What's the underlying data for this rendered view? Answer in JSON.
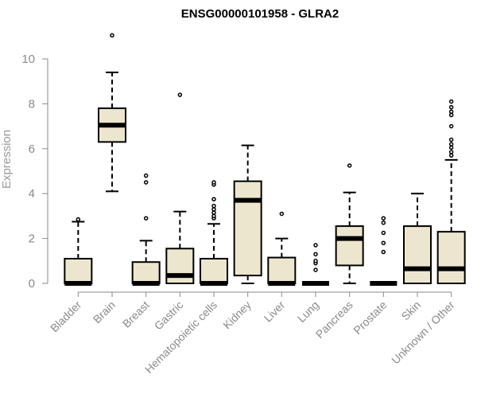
{
  "chart_data": {
    "type": "boxplot",
    "title": "ENSG00000101958 - GLRA2",
    "xlabel": "",
    "ylabel": "Expression",
    "ylim": [
      0,
      11
    ],
    "yticks": [
      0,
      2,
      4,
      6,
      8,
      10
    ],
    "grid": false,
    "legend": "none",
    "colors": {
      "box_fill": "#ede6cf",
      "box_stroke": "#000000",
      "axis": "#8a8a8a",
      "label": "#8a8a8a"
    },
    "categories": [
      "Bladder",
      "Brain",
      "Breast",
      "Gastric",
      "Hematopoietic cells",
      "Kidney",
      "Liver",
      "Lung",
      "Pancreas",
      "Prostate",
      "Skin",
      "Unknown / Other"
    ],
    "boxes": [
      {
        "category": "Bladder",
        "whisker_low": 0,
        "q1": 0,
        "median": 0,
        "q3": 1.1,
        "whisker_high": 2.75,
        "outliers": [
          2.85
        ]
      },
      {
        "category": "Brain",
        "whisker_low": 4.1,
        "q1": 6.3,
        "median": 7.05,
        "q3": 7.8,
        "whisker_high": 9.4,
        "outliers": [
          11.05
        ]
      },
      {
        "category": "Breast",
        "whisker_low": 0,
        "q1": 0,
        "median": 0,
        "q3": 0.95,
        "whisker_high": 1.9,
        "outliers": [
          2.9,
          4.5,
          4.8
        ]
      },
      {
        "category": "Gastric",
        "whisker_low": 0,
        "q1": 0,
        "median": 0.35,
        "q3": 1.55,
        "whisker_high": 3.2,
        "outliers": [
          8.4
        ]
      },
      {
        "category": "Hematopoietic cells",
        "whisker_low": 0,
        "q1": 0,
        "median": 0,
        "q3": 1.1,
        "whisker_high": 2.65,
        "outliers": [
          2.9,
          3.0,
          3.15,
          3.3,
          3.45,
          3.75,
          4.4,
          4.5
        ]
      },
      {
        "category": "Kidney",
        "whisker_low": 0,
        "q1": 0.35,
        "median": 3.7,
        "q3": 4.55,
        "whisker_high": 6.15,
        "outliers": []
      },
      {
        "category": "Liver",
        "whisker_low": 0,
        "q1": 0,
        "median": 0,
        "q3": 1.15,
        "whisker_high": 2.0,
        "outliers": [
          3.1
        ]
      },
      {
        "category": "Lung",
        "whisker_low": 0,
        "q1": 0,
        "median": 0,
        "q3": 0,
        "whisker_high": 0,
        "outliers": [
          0.6,
          0.9,
          1.0,
          1.3,
          1.7
        ]
      },
      {
        "category": "Pancreas",
        "whisker_low": 0,
        "q1": 0.8,
        "median": 2.0,
        "q3": 2.55,
        "whisker_high": 4.05,
        "outliers": [
          5.25
        ]
      },
      {
        "category": "Prostate",
        "whisker_low": 0,
        "q1": 0,
        "median": 0,
        "q3": 0,
        "whisker_high": 0,
        "outliers": [
          1.4,
          1.8,
          2.25,
          2.7,
          2.9
        ]
      },
      {
        "category": "Skin",
        "whisker_low": 0,
        "q1": 0,
        "median": 0.65,
        "q3": 2.55,
        "whisker_high": 4.0,
        "outliers": []
      },
      {
        "category": "Unknown / Other",
        "whisker_low": 0,
        "q1": 0,
        "median": 0.65,
        "q3": 2.3,
        "whisker_high": 5.5,
        "outliers": [
          5.7,
          5.85,
          6.05,
          6.2,
          6.4,
          7.0,
          7.5,
          7.65,
          7.85,
          8.1
        ]
      }
    ]
  }
}
